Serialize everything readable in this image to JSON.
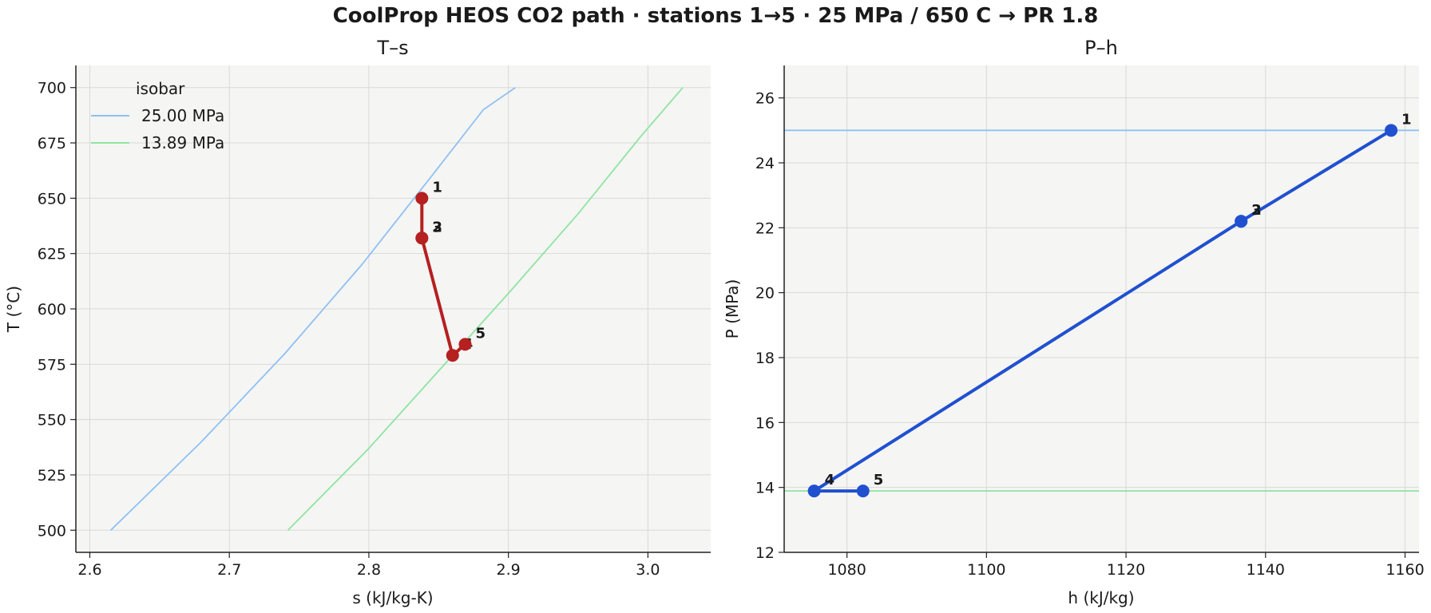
{
  "title": "CoolProp HEOS CO2 path  ·  stations 1→5  ·  25 MPa / 650 C → PR 1.8",
  "colors": {
    "background": "#f5f5f4",
    "grid": "#d9d9d9",
    "isobar_25": "#8fc1f3",
    "isobar_13_89": "#8fe49f",
    "ts_path": "#b52020",
    "ph_path": "#2050d0"
  },
  "chart_data": [
    {
      "type": "line",
      "title": "T–s",
      "xlabel": "s (kJ/kg-K)",
      "ylabel": "T (°C)",
      "xlim": [
        2.59,
        3.045
      ],
      "ylim": [
        490,
        710
      ],
      "xticks": [
        2.6,
        2.7,
        2.8,
        2.9,
        3.0
      ],
      "xtick_labels": [
        "2.6",
        "2.7",
        "2.8",
        "2.9",
        "3.0"
      ],
      "yticks": [
        500,
        525,
        550,
        575,
        600,
        625,
        650,
        675,
        700
      ],
      "ytick_labels": [
        "500",
        "525",
        "550",
        "575",
        "600",
        "625",
        "650",
        "675",
        "700"
      ],
      "grid": true,
      "legend": {
        "title": "isobar",
        "placement": "upper-left",
        "entries": [
          "25.00 MPa",
          "13.89 MPa"
        ]
      },
      "series": [
        {
          "name": "25.00 MPa",
          "color": "#8fc1f3",
          "x": [
            2.615,
            2.68,
            2.74,
            2.795,
            2.845,
            2.882,
            2.905
          ],
          "y": [
            500,
            540,
            580,
            620,
            660,
            690,
            700
          ]
        },
        {
          "name": "13.89 MPa",
          "color": "#8fe49f",
          "x": [
            2.742,
            2.8,
            2.85,
            2.9,
            2.95,
            2.995,
            3.025
          ],
          "y": [
            500,
            537,
            572,
            607,
            643,
            678,
            700
          ]
        },
        {
          "color": "#b52020",
          "marker": "circle",
          "x": [
            2.838,
            2.838,
            2.838,
            2.86,
            2.869
          ],
          "y": [
            650,
            632,
            632,
            579,
            584
          ],
          "labels": [
            "1",
            "2",
            "3",
            "4",
            "5"
          ]
        }
      ]
    },
    {
      "type": "line",
      "title": "P–h",
      "xlabel": "h (kJ/kg)",
      "ylabel": "P (MPa)",
      "xlim": [
        1071,
        1162
      ],
      "ylim": [
        12,
        27
      ],
      "xticks": [
        1080,
        1100,
        1120,
        1140,
        1160
      ],
      "xtick_labels": [
        "1080",
        "1100",
        "1120",
        "1140",
        "1160"
      ],
      "yticks": [
        12,
        14,
        16,
        18,
        20,
        22,
        24,
        26
      ],
      "ytick_labels": [
        "12",
        "14",
        "16",
        "18",
        "20",
        "22",
        "24",
        "26"
      ],
      "grid": true,
      "series": [
        {
          "name": "25.00 MPa",
          "color": "#8fc1f3",
          "x": [
            1071,
            1162
          ],
          "y": [
            25.0,
            25.0
          ]
        },
        {
          "name": "13.89 MPa",
          "color": "#8fe49f",
          "x": [
            1071,
            1162
          ],
          "y": [
            13.89,
            13.89
          ]
        },
        {
          "color": "#2050d0",
          "marker": "circle",
          "x": [
            1158.0,
            1136.5,
            1136.5,
            1075.3,
            1082.3
          ],
          "y": [
            25.0,
            22.2,
            22.2,
            13.89,
            13.89
          ],
          "labels": [
            "1",
            "2",
            "3",
            "4",
            "5"
          ]
        }
      ]
    }
  ]
}
